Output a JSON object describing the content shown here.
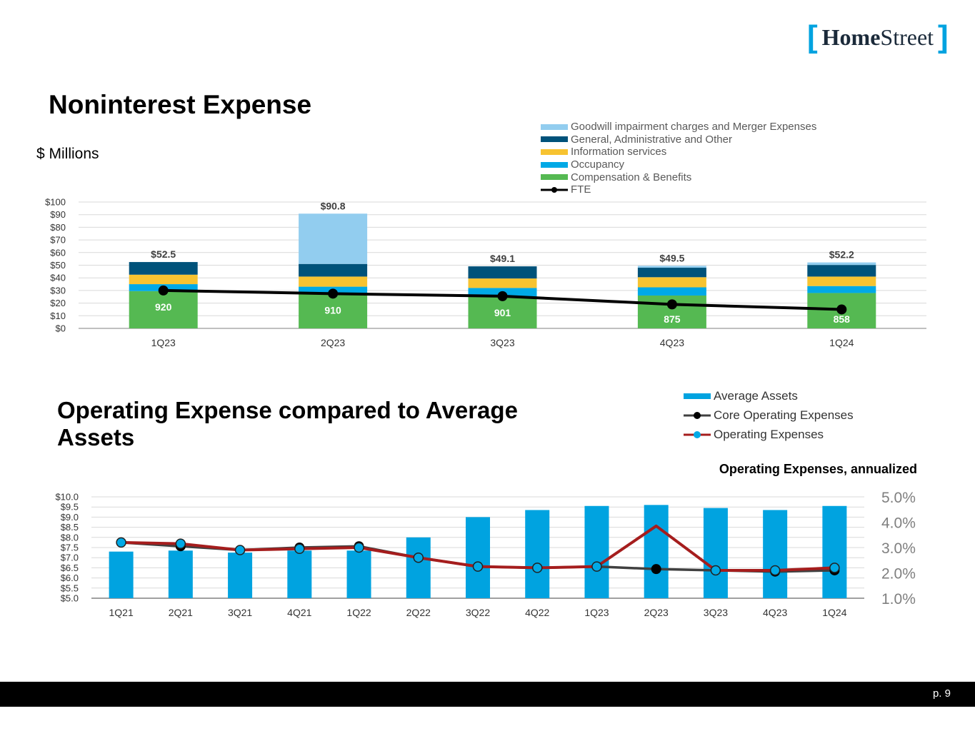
{
  "logo": {
    "open_bracket": "[",
    "home": "Home",
    "street": "Street",
    "close_bracket": "]"
  },
  "slide": {
    "title": "Noninterest Expense",
    "subtitle": "$ Millions",
    "page": "p. 9"
  },
  "colors": {
    "goodwill": "#92cdef",
    "ga": "#00527a",
    "info": "#f7c331",
    "occupancy": "#00a9e6",
    "comp": "#55b952",
    "fte": "#000000",
    "avg_assets": "#00a3e0",
    "core_line": "#404040",
    "core_marker": "#000000",
    "op_line": "#a51d1d",
    "op_marker": "#00a9e6"
  },
  "chart_data": [
    {
      "type": "bar",
      "stacked": true,
      "title": "Noninterest Expense",
      "ylabel": "$ Millions",
      "categories": [
        "1Q23",
        "2Q23",
        "3Q23",
        "4Q23",
        "1Q24"
      ],
      "ylim": [
        0,
        100
      ],
      "yticks": [
        "$0",
        "$10",
        "$20",
        "$30",
        "$40",
        "$50",
        "$60",
        "$70",
        "$80",
        "$90",
        "$100"
      ],
      "series": [
        {
          "name": "Compensation & Benefits",
          "values": [
            29.5,
            27.0,
            25.0,
            26.0,
            28.0
          ]
        },
        {
          "name": "Occupancy",
          "values": [
            5.5,
            6.0,
            7.0,
            6.5,
            5.5
          ]
        },
        {
          "name": "Information services",
          "values": [
            7.5,
            8.0,
            7.5,
            8.0,
            7.5
          ]
        },
        {
          "name": "General, Administrative and Other",
          "values": [
            10.0,
            10.0,
            9.6,
            7.5,
            9.2
          ]
        },
        {
          "name": "Goodwill impairment charges and Merger Expenses",
          "values": [
            0.0,
            39.8,
            0.0,
            1.5,
            2.0
          ]
        }
      ],
      "totals": [
        "$52.5",
        "$90.8",
        "$49.1",
        "$49.5",
        "$52.2"
      ],
      "line": {
        "name": "FTE",
        "labels": [
          "920",
          "910",
          "901",
          "875",
          "858"
        ],
        "plot_values": [
          30,
          27.5,
          25.5,
          19,
          15
        ]
      },
      "legend": [
        "Goodwill impairment charges and Merger Expenses",
        "General, Administrative and Other",
        "Information services",
        "Occupancy",
        "Compensation & Benefits",
        "FTE"
      ]
    },
    {
      "type": "bar",
      "title": "Operating Expense compared to Average Assets",
      "annotation": "Operating Expenses, annualized",
      "categories": [
        "1Q21",
        "2Q21",
        "3Q21",
        "4Q21",
        "1Q22",
        "2Q22",
        "3Q22",
        "4Q22",
        "1Q23",
        "2Q23",
        "3Q23",
        "4Q23",
        "1Q24"
      ],
      "ylim": [
        5.0,
        10.0
      ],
      "yticks": [
        "$5.0",
        "$5.5",
        "$6.0",
        "$6.5",
        "$7.0",
        "$7.5",
        "$8.0",
        "$8.5",
        "$9.0",
        "$9.5",
        "$10.0"
      ],
      "y2lim": [
        1.0,
        5.0
      ],
      "y2ticks": [
        "1.0%",
        "2.0%",
        "3.0%",
        "4.0%",
        "5.0%"
      ],
      "series": [
        {
          "name": "Average Assets",
          "axis": "left",
          "values": [
            7.3,
            7.35,
            7.25,
            7.35,
            7.35,
            8.0,
            9.0,
            9.35,
            9.55,
            9.6,
            9.45,
            9.35,
            9.55
          ]
        },
        {
          "name": "Core Operating Expenses",
          "axis": "right",
          "values": [
            3.2,
            3.05,
            2.9,
            3.0,
            3.05,
            2.6,
            2.25,
            2.2,
            2.25,
            2.15,
            2.1,
            2.05,
            2.1
          ]
        },
        {
          "name": "Operating Expenses",
          "axis": "right",
          "values": [
            3.2,
            3.15,
            2.9,
            2.95,
            3.0,
            2.6,
            2.25,
            2.2,
            2.25,
            3.85,
            2.1,
            2.1,
            2.2
          ]
        }
      ],
      "legend": [
        "Average Assets",
        "Core Operating Expenses",
        "Operating Expenses"
      ]
    }
  ]
}
